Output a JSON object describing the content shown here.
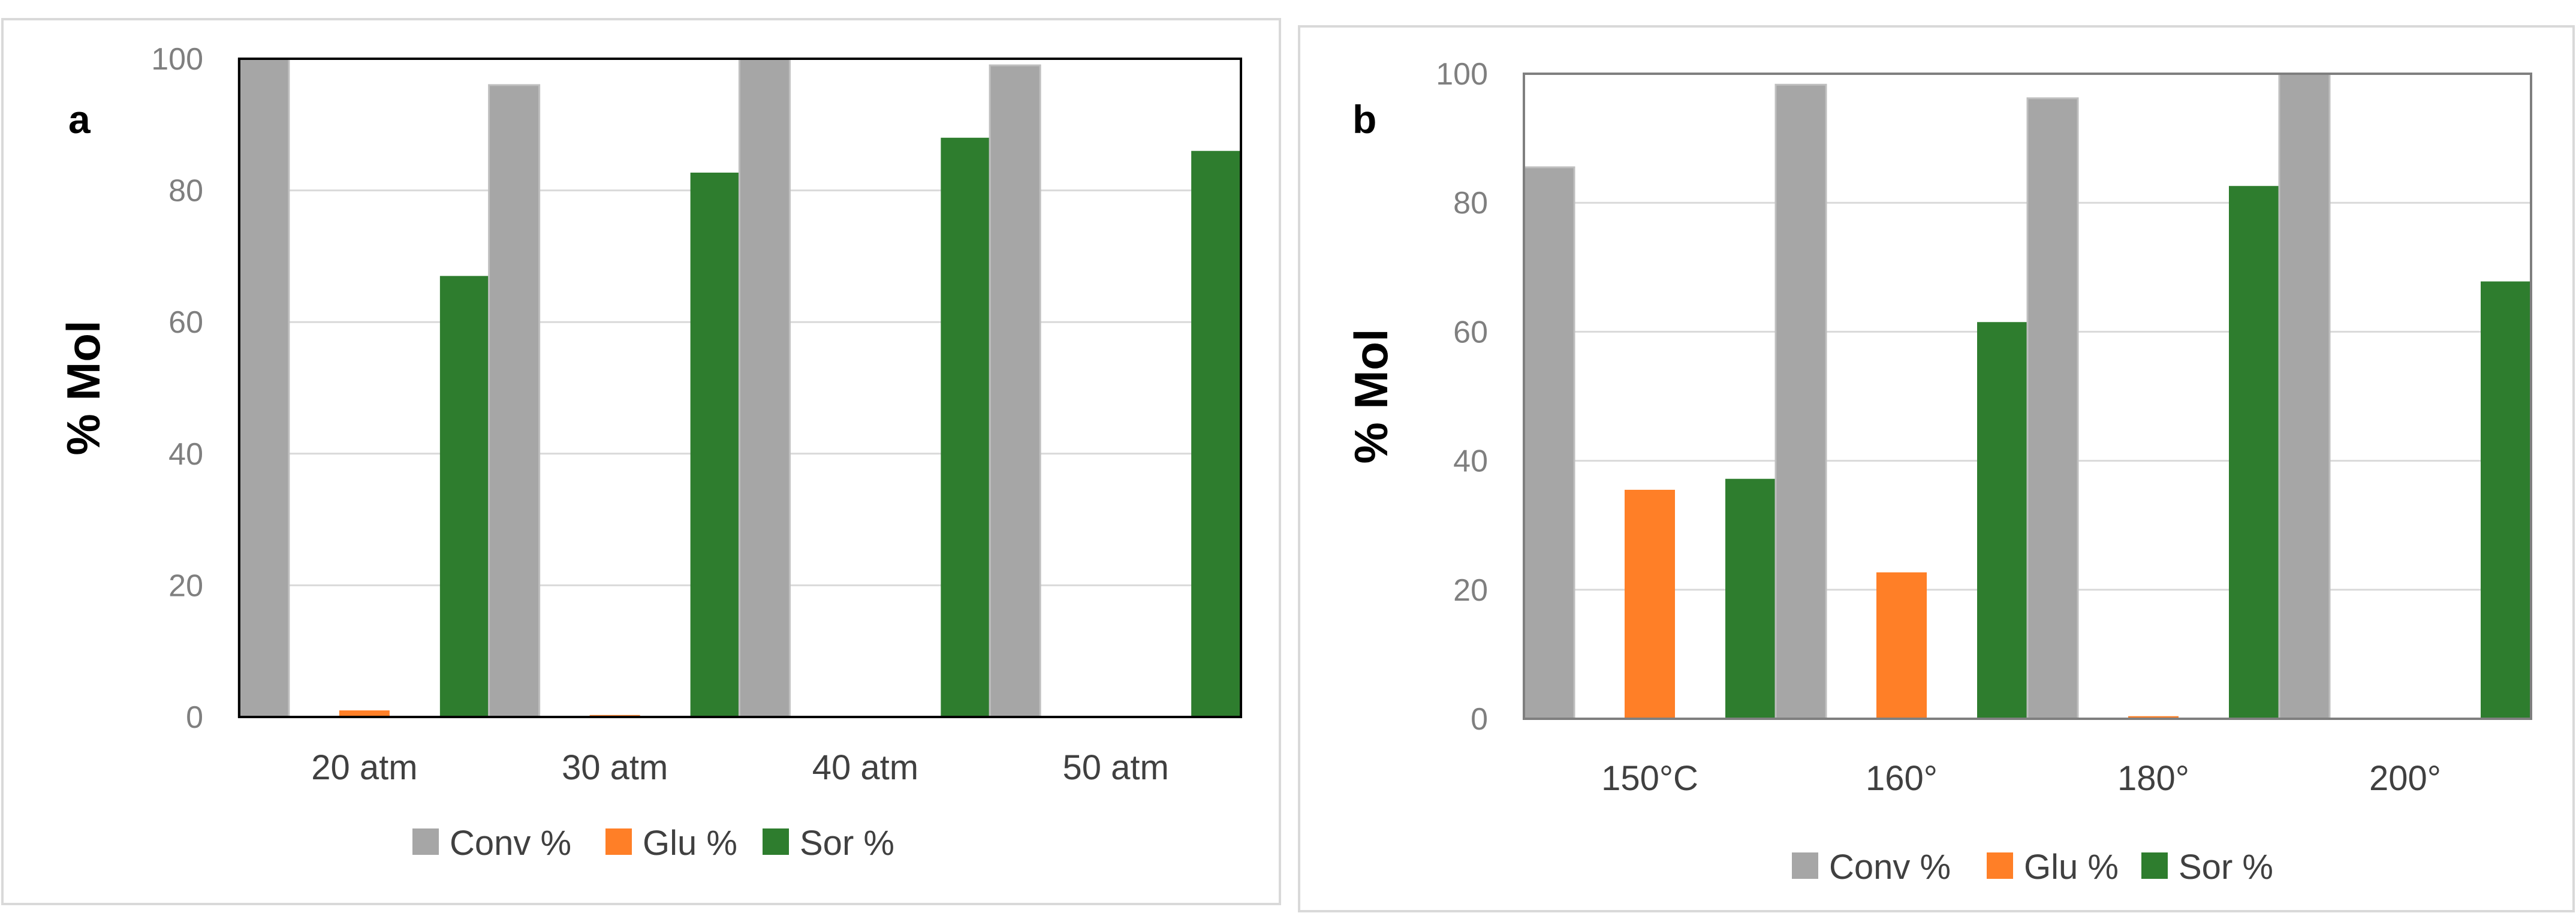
{
  "chart_data": [
    {
      "type": "bar",
      "panel_label": "a",
      "title": "",
      "xlabel": "",
      "ylabel": "% Mol",
      "ylim": [
        0,
        100
      ],
      "yticks": [
        "0",
        "20",
        "40",
        "60",
        "80",
        "100"
      ],
      "categories": [
        "20 atm",
        "30 atm",
        "40 atm",
        "50 atm"
      ],
      "series": [
        {
          "name": "Conv %",
          "color": "#a6a6a6",
          "values": [
            100,
            96,
            100,
            99
          ]
        },
        {
          "name": "Glu %",
          "color": "#ff7f27",
          "values": [
            1,
            0.3,
            0,
            0
          ]
        },
        {
          "name": "Sor %",
          "color": "#2e7d2e",
          "values": [
            67,
            82.7,
            88,
            86
          ]
        }
      ],
      "grid": true,
      "legend_position": "bottom"
    },
    {
      "type": "bar",
      "panel_label": "b",
      "title": "",
      "xlabel": "",
      "ylabel": "% Mol",
      "ylim": [
        0,
        100
      ],
      "yticks": [
        "0",
        "20",
        "40",
        "60",
        "80",
        "100"
      ],
      "categories": [
        "150°C",
        "160°",
        "180°",
        "200°"
      ],
      "series": [
        {
          "name": "Conv %",
          "color": "#a6a6a6",
          "values": [
            85.5,
            98.3,
            96.2,
            100
          ]
        },
        {
          "name": "Glu %",
          "color": "#ff7f27",
          "values": [
            35.5,
            22.7,
            0.4,
            0
          ]
        },
        {
          "name": "Sor %",
          "color": "#2e7d2e",
          "values": [
            37.2,
            61.5,
            82.6,
            67.8
          ]
        }
      ],
      "grid": true,
      "legend_position": "bottom"
    }
  ]
}
